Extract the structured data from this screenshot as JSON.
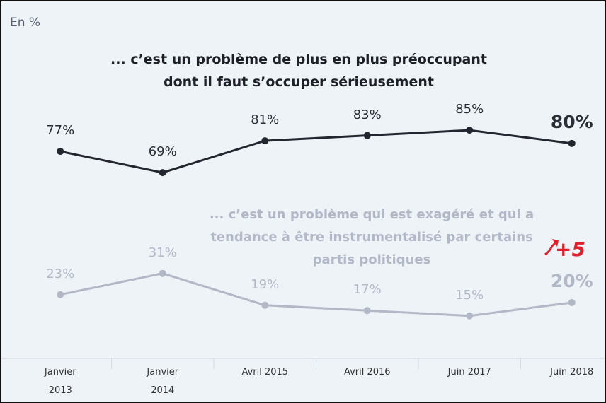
{
  "chart_data": {
    "type": "line",
    "unit_label": "En %",
    "categories": [
      "Janvier 2013",
      "Janvier 2014",
      "Avril 2015",
      "Avril 2016",
      "Juin 2017",
      "Juin 2018"
    ],
    "series": [
      {
        "name": "... c’est un problème de plus en plus préoccupant dont il faut s’occuper sérieusement",
        "color": "#23262e",
        "values": [
          77,
          69,
          81,
          83,
          85,
          80
        ],
        "value_labels": [
          "77%",
          "69%",
          "81%",
          "83%",
          "85%",
          "80%"
        ]
      },
      {
        "name": "... c’est un problème qui est exagéré et qui a tendance à être instrumentalisé par certains partis politiques",
        "color": "#b3b8c7",
        "values": [
          23,
          31,
          19,
          17,
          15,
          20
        ],
        "value_labels": [
          "23%",
          "31%",
          "19%",
          "17%",
          "15%",
          "20%"
        ]
      }
    ],
    "annotation": "+5",
    "ylim": [
      0,
      125
    ]
  }
}
